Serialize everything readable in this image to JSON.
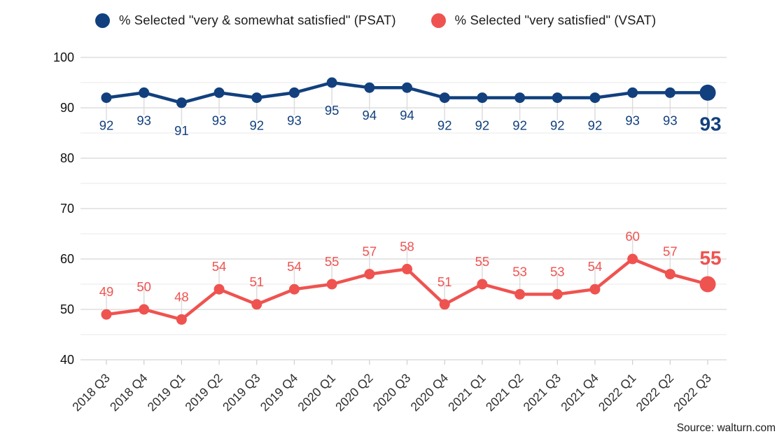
{
  "chart_data": {
    "type": "line",
    "categories": [
      "2018 Q3",
      "2018 Q4",
      "2019 Q1",
      "2019 Q2",
      "2019 Q3",
      "2019 Q4",
      "2020 Q1",
      "2020 Q2",
      "2020 Q3",
      "2020 Q4",
      "2021 Q1",
      "2021 Q2",
      "2021 Q3",
      "2021 Q4",
      "2022 Q1",
      "2022 Q2",
      "2022 Q3"
    ],
    "series": [
      {
        "name": "PSAT",
        "legend_label": "% Selected \"very & somewhat satisfied\" (PSAT)",
        "color": "#12407E",
        "values": [
          92,
          93,
          91,
          93,
          92,
          93,
          95,
          94,
          94,
          92,
          92,
          92,
          92,
          92,
          93,
          93,
          93
        ],
        "label_position": "below"
      },
      {
        "name": "VSAT",
        "legend_label": "% Selected \"very satisfied\" (VSAT)",
        "color": "#EF5350",
        "values": [
          49,
          50,
          48,
          54,
          51,
          54,
          55,
          57,
          58,
          51,
          55,
          53,
          53,
          54,
          60,
          57,
          55
        ],
        "label_position": "above"
      }
    ],
    "title": "",
    "xlabel": "",
    "ylabel": "",
    "ylim": [
      40,
      100
    ],
    "y_major_step": 10,
    "y_minor_step": 5,
    "y_tick_labels": [
      "40",
      "50",
      "60",
      "70",
      "80",
      "90",
      "100"
    ],
    "grid": "on",
    "legend_position": "top",
    "data_labels": "on",
    "last_point_emphasized": true,
    "source": "Source: walturn.com"
  },
  "colors": {
    "grid_major": "#d6d6d6",
    "grid_minor": "#eaeaea",
    "leader_line": "#dddddd",
    "axis_tick": "#cfcfcf",
    "y_label_text": "#111111",
    "x_label_text": "#2e2e2e"
  }
}
